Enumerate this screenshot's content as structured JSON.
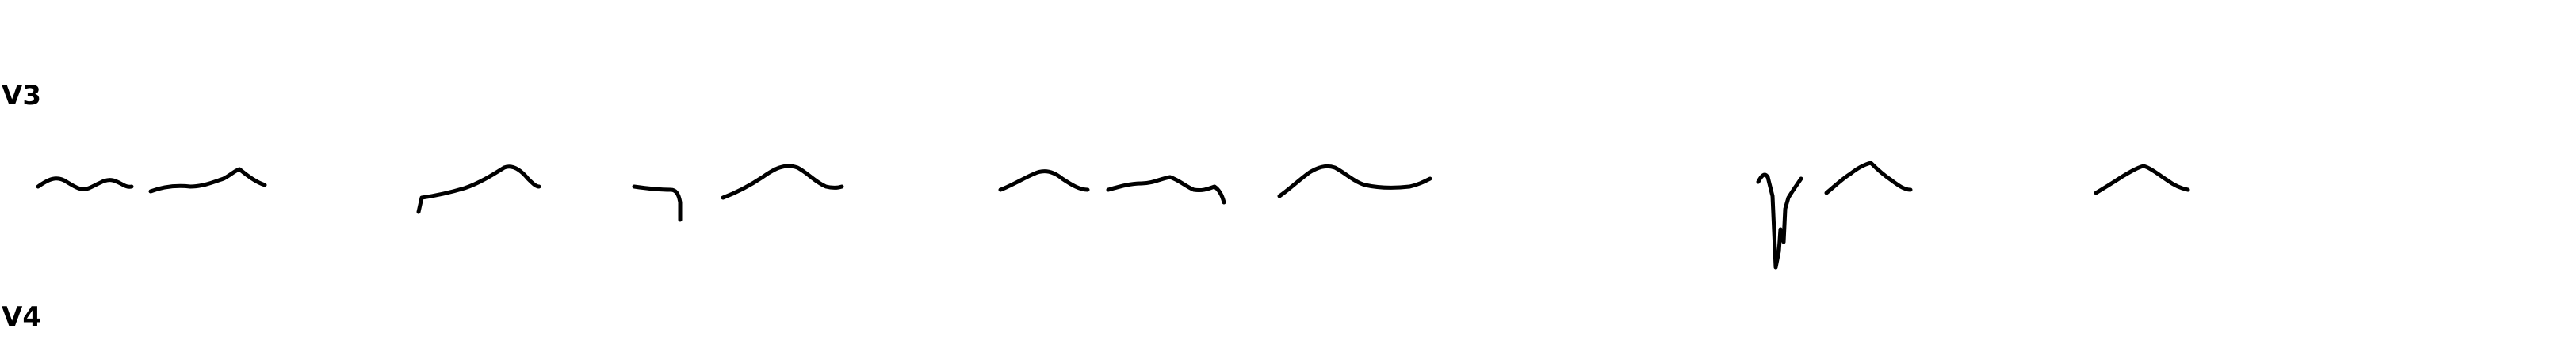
{
  "labels": {
    "top": "V3",
    "bottom": "V4"
  },
  "colors": {
    "background": "#ffffff",
    "ink": "#000000"
  }
}
